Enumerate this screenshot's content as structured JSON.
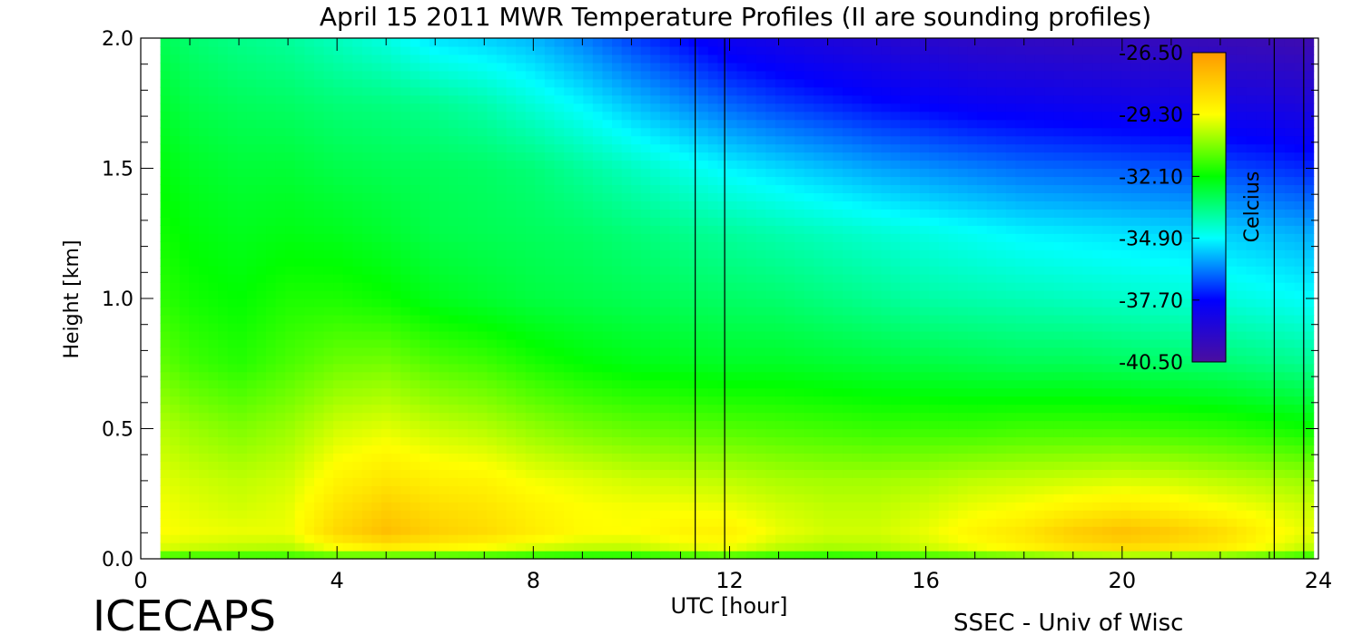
{
  "chart_data": {
    "type": "heatmap",
    "title": "April 15 2011 MWR Temperature Profiles (II are sounding profiles)",
    "xlabel": "UTC [hour]",
    "ylabel": "Height [km]",
    "xlim": [
      0,
      24
    ],
    "ylim": [
      0.0,
      2.0
    ],
    "x_ticks": [
      0,
      4,
      8,
      12,
      16,
      20,
      24
    ],
    "y_ticks": [
      0.0,
      0.5,
      1.0,
      1.5,
      2.0
    ],
    "x_tick_labels": [
      "0",
      "4",
      "8",
      "12",
      "16",
      "20",
      "24"
    ],
    "y_tick_labels": [
      "0.0",
      "0.5",
      "1.0",
      "1.5",
      "2.0"
    ],
    "data_x_range": [
      0.4,
      23.9
    ],
    "colorbar": {
      "label": "Celcius",
      "range": [
        -40.5,
        -26.5
      ],
      "tick_values": [
        -26.5,
        -29.3,
        -32.1,
        -34.9,
        -37.7,
        -40.5
      ],
      "tick_labels": [
        "-26.50",
        "-29.30",
        "-32.10",
        "-34.90",
        "-37.70",
        "-40.50"
      ],
      "colormap": [
        "#4b0e9e",
        "#0000ff",
        "#00ffff",
        "#00ff00",
        "#ffff00",
        "#ff9900"
      ]
    },
    "sounding_profiles_utc": [
      11.3,
      11.9,
      23.1,
      23.7
    ],
    "hours": [
      0.4,
      1,
      2,
      3,
      4,
      5,
      6,
      7,
      8,
      9,
      10,
      11,
      12,
      13,
      14,
      15,
      16,
      17,
      18,
      19,
      20,
      21,
      22,
      23,
      23.9
    ],
    "heights_km": [
      0.0,
      0.03,
      0.1,
      0.2,
      0.3,
      0.5,
      0.75,
      1.0,
      1.25,
      1.5,
      1.75,
      2.0
    ],
    "temperature_c": [
      [
        -32.5,
        -32.5,
        -32.4,
        -32.3,
        -32.2,
        -32.6,
        -32.7,
        -32.8,
        -32.9,
        -33.0,
        -33.0,
        -32.8,
        -32.6,
        -32.7,
        -32.7,
        -32.6,
        -32.4,
        -32.2,
        -32.0,
        -31.8,
        -31.7,
        -31.8,
        -31.9,
        -32.2,
        -32.6
      ],
      [
        -29.8,
        -30.0,
        -30.2,
        -30.3,
        -29.6,
        -29.2,
        -29.4,
        -29.6,
        -30.0,
        -30.2,
        -30.2,
        -29.8,
        -29.6,
        -30.2,
        -30.4,
        -30.3,
        -30.0,
        -29.6,
        -29.2,
        -28.8,
        -28.6,
        -28.8,
        -29.0,
        -29.6,
        -30.2
      ],
      [
        -29.3,
        -29.4,
        -29.5,
        -29.5,
        -28.2,
        -27.5,
        -28.0,
        -28.3,
        -28.8,
        -29.2,
        -29.3,
        -29.0,
        -28.9,
        -29.5,
        -29.8,
        -29.8,
        -29.5,
        -29.0,
        -28.6,
        -27.9,
        -27.5,
        -27.8,
        -28.3,
        -29.1,
        -29.6
      ],
      [
        -29.4,
        -29.6,
        -29.8,
        -29.6,
        -28.6,
        -28.0,
        -28.4,
        -28.6,
        -29.0,
        -29.3,
        -29.4,
        -29.4,
        -29.5,
        -29.8,
        -30.0,
        -30.0,
        -29.8,
        -29.5,
        -29.3,
        -29.0,
        -28.8,
        -29.0,
        -29.3,
        -29.6,
        -29.9
      ],
      [
        -29.6,
        -29.8,
        -30.0,
        -29.8,
        -29.0,
        -28.6,
        -28.9,
        -29.0,
        -29.4,
        -29.6,
        -29.8,
        -29.9,
        -30.0,
        -30.2,
        -30.3,
        -30.3,
        -30.2,
        -30.0,
        -29.9,
        -29.8,
        -29.7,
        -29.8,
        -30.0,
        -30.2,
        -30.4
      ],
      [
        -30.1,
        -30.4,
        -30.7,
        -30.4,
        -29.8,
        -29.6,
        -29.9,
        -30.1,
        -30.5,
        -30.8,
        -31.0,
        -31.1,
        -31.2,
        -31.3,
        -31.4,
        -31.5,
        -31.5,
        -31.5,
        -31.4,
        -31.4,
        -31.4,
        -31.5,
        -31.6,
        -31.8,
        -32.0
      ],
      [
        -31.0,
        -31.4,
        -31.7,
        -31.3,
        -30.9,
        -30.8,
        -31.2,
        -31.4,
        -31.8,
        -32.1,
        -32.3,
        -32.4,
        -32.5,
        -32.5,
        -32.6,
        -32.7,
        -32.8,
        -32.9,
        -33.0,
        -33.0,
        -33.1,
        -33.2,
        -33.3,
        -33.5,
        -33.7
      ],
      [
        -31.6,
        -31.9,
        -32.1,
        -31.8,
        -31.8,
        -32.0,
        -32.4,
        -32.6,
        -32.8,
        -32.9,
        -33.0,
        -33.1,
        -33.2,
        -33.3,
        -33.5,
        -33.7,
        -33.9,
        -34.0,
        -34.1,
        -34.2,
        -34.3,
        -34.4,
        -34.5,
        -34.7,
        -34.9
      ],
      [
        -31.9,
        -32.2,
        -32.4,
        -32.3,
        -32.4,
        -32.6,
        -32.9,
        -33.0,
        -33.1,
        -33.2,
        -33.4,
        -33.6,
        -33.8,
        -34.0,
        -34.2,
        -34.4,
        -34.6,
        -34.8,
        -35.0,
        -35.1,
        -35.2,
        -35.3,
        -35.4,
        -35.6,
        -35.8
      ],
      [
        -32.2,
        -32.5,
        -32.7,
        -32.7,
        -32.9,
        -33.0,
        -33.1,
        -33.2,
        -33.4,
        -33.8,
        -34.2,
        -34.6,
        -35.0,
        -35.3,
        -35.6,
        -35.9,
        -36.1,
        -36.3,
        -36.5,
        -36.6,
        -36.7,
        -36.8,
        -36.9,
        -37.1,
        -37.3
      ],
      [
        -32.6,
        -32.9,
        -33.1,
        -33.2,
        -33.4,
        -33.5,
        -33.7,
        -34.0,
        -34.5,
        -35.0,
        -35.6,
        -36.1,
        -36.6,
        -37.0,
        -37.3,
        -37.6,
        -37.8,
        -38.0,
        -38.1,
        -38.2,
        -38.3,
        -38.4,
        -38.5,
        -38.6,
        -38.8
      ],
      [
        -33.0,
        -33.3,
        -33.6,
        -33.8,
        -34.2,
        -34.6,
        -35.2,
        -35.4,
        -35.7,
        -36.3,
        -37.0,
        -37.6,
        -38.2,
        -38.5,
        -38.8,
        -39.0,
        -39.2,
        -39.4,
        -39.5,
        -39.6,
        -39.6,
        -39.7,
        -39.8,
        -39.9,
        -40.0
      ]
    ]
  },
  "footer": {
    "left_label": "ICECAPS",
    "right_label": "SSEC - Univ of Wisc"
  }
}
